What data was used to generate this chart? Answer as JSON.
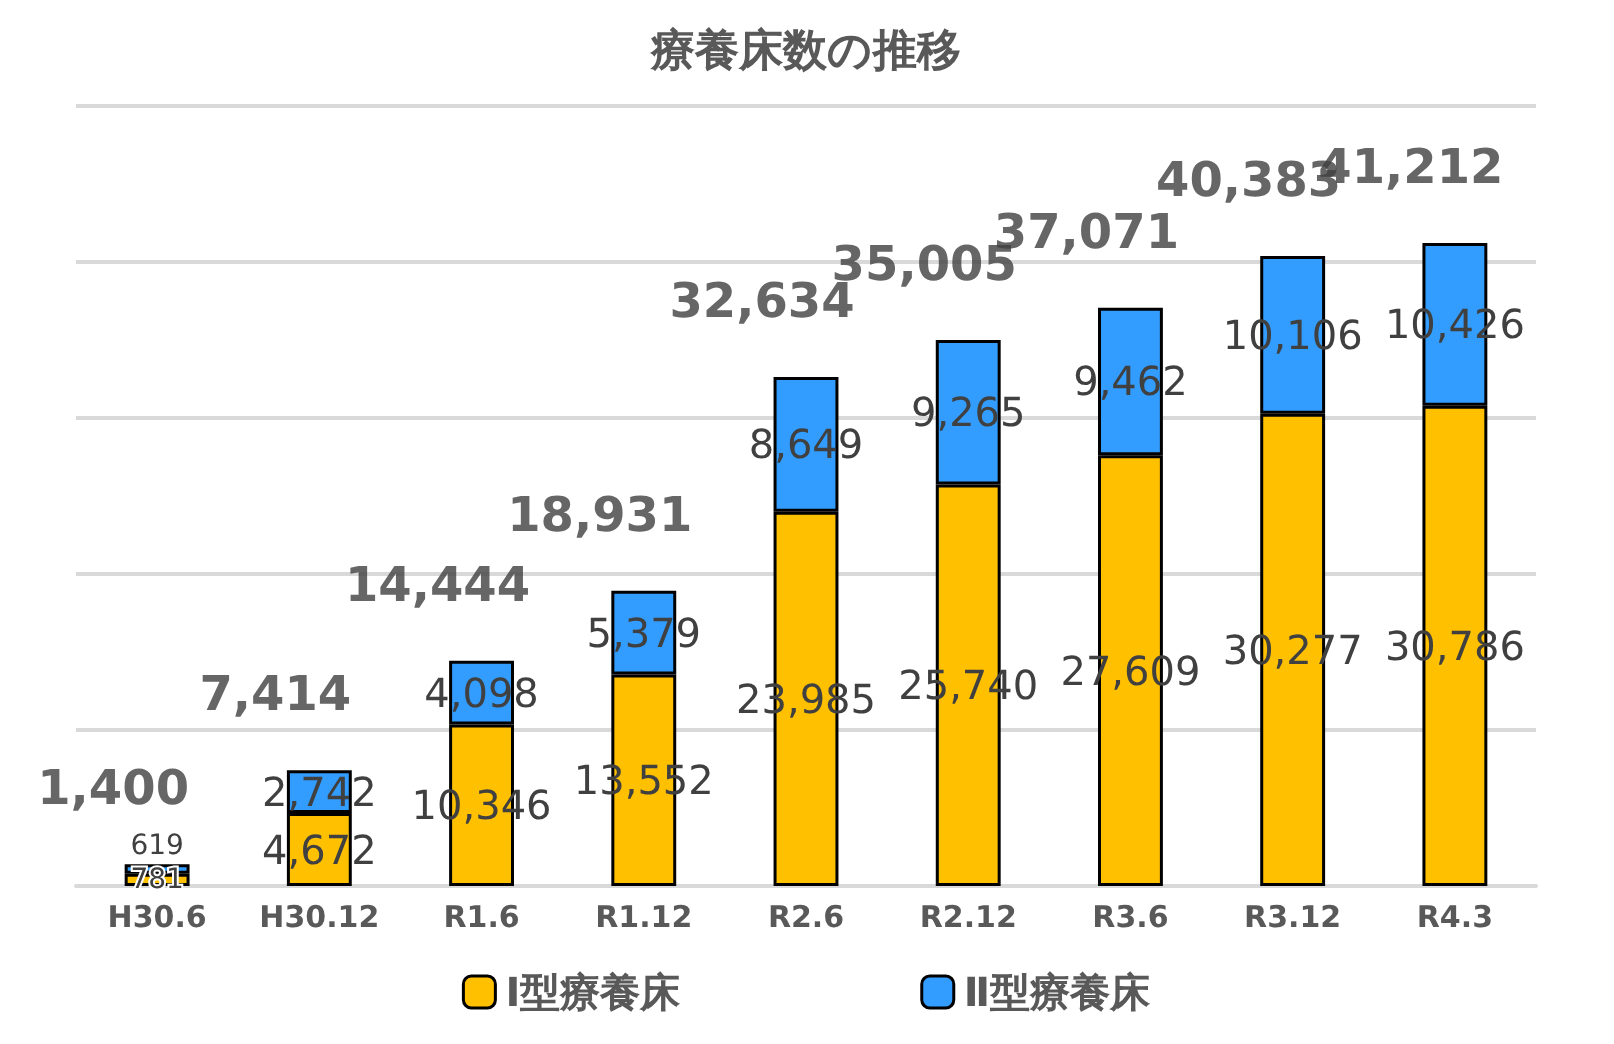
{
  "chart_data": {
    "type": "bar",
    "title": "療養床数の推移",
    "stacked": true,
    "categories": [
      "H30.6",
      "H30.12",
      "R1.6",
      "R1.12",
      "R2.6",
      "R2.12",
      "R3.6",
      "R3.12",
      "R4.3"
    ],
    "series": [
      {
        "name": "Ⅰ型療養床",
        "color": "#ffc000",
        "values": [
          781,
          4672,
          10346,
          13552,
          23985,
          25740,
          27609,
          30277,
          30786
        ],
        "value_labels": [
          "781",
          "4,672",
          "10,346",
          "13,552",
          "23,985",
          "25,740",
          "27,609",
          "30,277",
          "30,786"
        ]
      },
      {
        "name": "Ⅱ型療養床",
        "color": "#339dff",
        "values": [
          619,
          2742,
          4098,
          5379,
          8649,
          9265,
          9462,
          10106,
          10426
        ],
        "value_labels": [
          "619",
          "2,742",
          "4,098",
          "5,379",
          "8,649",
          "9,265",
          "9,462",
          "10,106",
          "10,426"
        ]
      }
    ],
    "totals": [
      "1,400",
      "7,414",
      "14,444",
      "18,931",
      "32,634",
      "35,005",
      "37,071",
      "40,383",
      "41,212"
    ],
    "tick_labels": "x",
    "grid": "y",
    "legend": "bottom"
  }
}
